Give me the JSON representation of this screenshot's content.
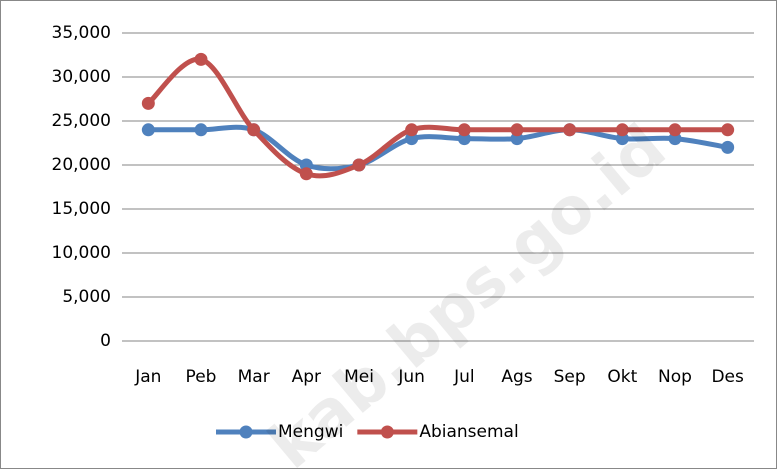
{
  "chart_data": {
    "type": "line",
    "categories": [
      "Jan",
      "Peb",
      "Mar",
      "Apr",
      "Mei",
      "Jun",
      "Jul",
      "Ags",
      "Sep",
      "Okt",
      "Nop",
      "Des"
    ],
    "series": [
      {
        "name": "Mengwi",
        "color": "#4f81bd",
        "values": [
          24000,
          24000,
          24000,
          20000,
          20000,
          23000,
          23000,
          23000,
          24000,
          23000,
          23000,
          22000
        ]
      },
      {
        "name": "Abiansemal",
        "color": "#c0504d",
        "values": [
          27000,
          32000,
          24000,
          19000,
          20000,
          24000,
          24000,
          24000,
          24000,
          24000,
          24000,
          24000
        ]
      }
    ],
    "ylim": [
      0,
      35000
    ],
    "yticks": [
      0,
      {
        "value": 5000,
        "label": "5,000"
      },
      {
        "value": 10000,
        "label": "10,000"
      },
      {
        "value": 15000,
        "label": "15,000"
      },
      {
        "value": 20000,
        "label": "20,000"
      },
      {
        "value": 25000,
        "label": "25,000"
      },
      {
        "value": 30000,
        "label": "30,000"
      },
      {
        "value": 35000,
        "label": "35,000"
      }
    ],
    "grid": true,
    "smooth": true,
    "legend": "bottom",
    "watermark": "kab.bps.go.id"
  }
}
